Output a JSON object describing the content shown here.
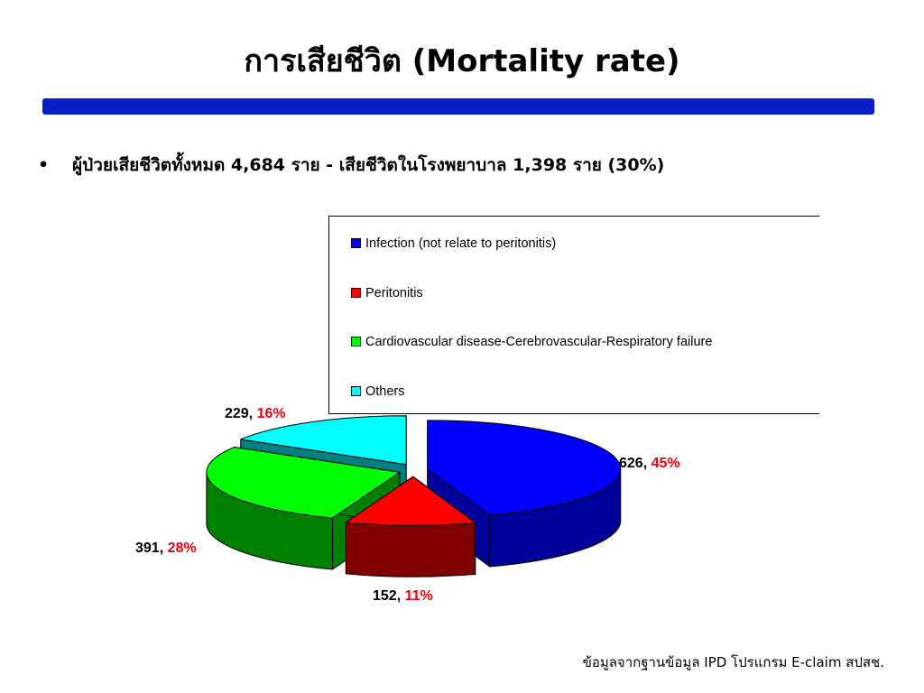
{
  "slide": {
    "title": "การเสียชีวิต (Mortality rate)",
    "bullet_symbol": "•",
    "bullet_text": "ผู้ป่วยเสียชีวิตทั้งหมด 4,684 ราย - เสียชีวิตในโรงพยาบาล 1,398 ราย (30%)",
    "source": "ข้อมูลจากฐานข้อมูล IPD โปรแกรม E-claim สปสช.",
    "bar_color": "#0a1fc8"
  },
  "chart_data": {
    "type": "pie",
    "variant": "3d-exploded",
    "legend_position": "top-right",
    "slices": [
      {
        "name": "Infection (not relate to peritonitis)",
        "value": 626,
        "percent": "45%",
        "color": "#0000ff",
        "side_color": "#00009a"
      },
      {
        "name": "Peritonitis",
        "value": 152,
        "percent": "11%",
        "color": "#ff0000",
        "side_color": "#800000"
      },
      {
        "name": "Cardiovascular disease-Cerebrovascular-Respiratory failure",
        "value": 391,
        "percent": "28%",
        "color": "#00ff00",
        "side_color": "#008000"
      },
      {
        "name": "Others",
        "value": 229,
        "percent": "16%",
        "color": "#00ffff",
        "side_color": "#008080"
      }
    ]
  }
}
